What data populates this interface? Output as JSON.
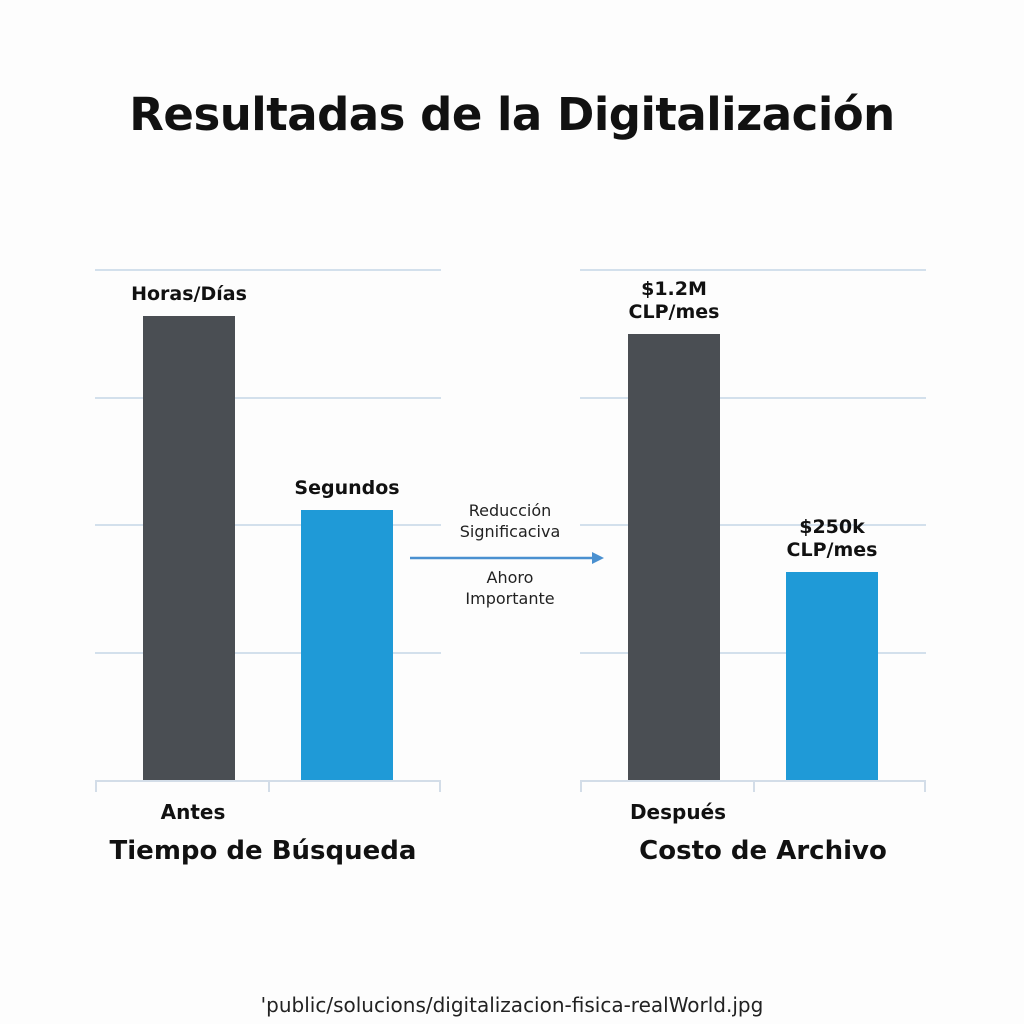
{
  "title": "Resultadas de la Digitalización",
  "colors": {
    "before": "#4a4e53",
    "after": "#1f9ad7",
    "grid": "#d3e0ec",
    "arrow": "#4a90d0"
  },
  "chart_data": [
    {
      "type": "bar",
      "group_label": "Tiempo de Búsqueda",
      "category_label": "Antes",
      "categories": [
        "Antes",
        "Después"
      ],
      "values": [
        3.64,
        2.12
      ],
      "data_labels": [
        "Horas/Días",
        "Segundos"
      ],
      "ylim": [
        0,
        4
      ],
      "grid": true
    },
    {
      "type": "bar",
      "group_label": "Costo de Archivo",
      "category_label": "Después",
      "categories": [
        "Antes",
        "Después"
      ],
      "values": [
        3.5,
        1.63
      ],
      "data_labels": [
        "$1.2M\nCLP/mes",
        "$250k\nCLP/mes"
      ],
      "data_label_lines": [
        [
          "$1.2M",
          "CLP/mes"
        ],
        [
          "$250k",
          "CLP/mes"
        ]
      ],
      "ylim": [
        0,
        4
      ],
      "grid": true
    }
  ],
  "annotation": {
    "top": [
      "Reducción",
      "Significaciva"
    ],
    "bottom": [
      "Ahoro",
      "Importante"
    ]
  },
  "caption": "'public/solucions/digitalizacion-fisica-realWorld.jpg"
}
